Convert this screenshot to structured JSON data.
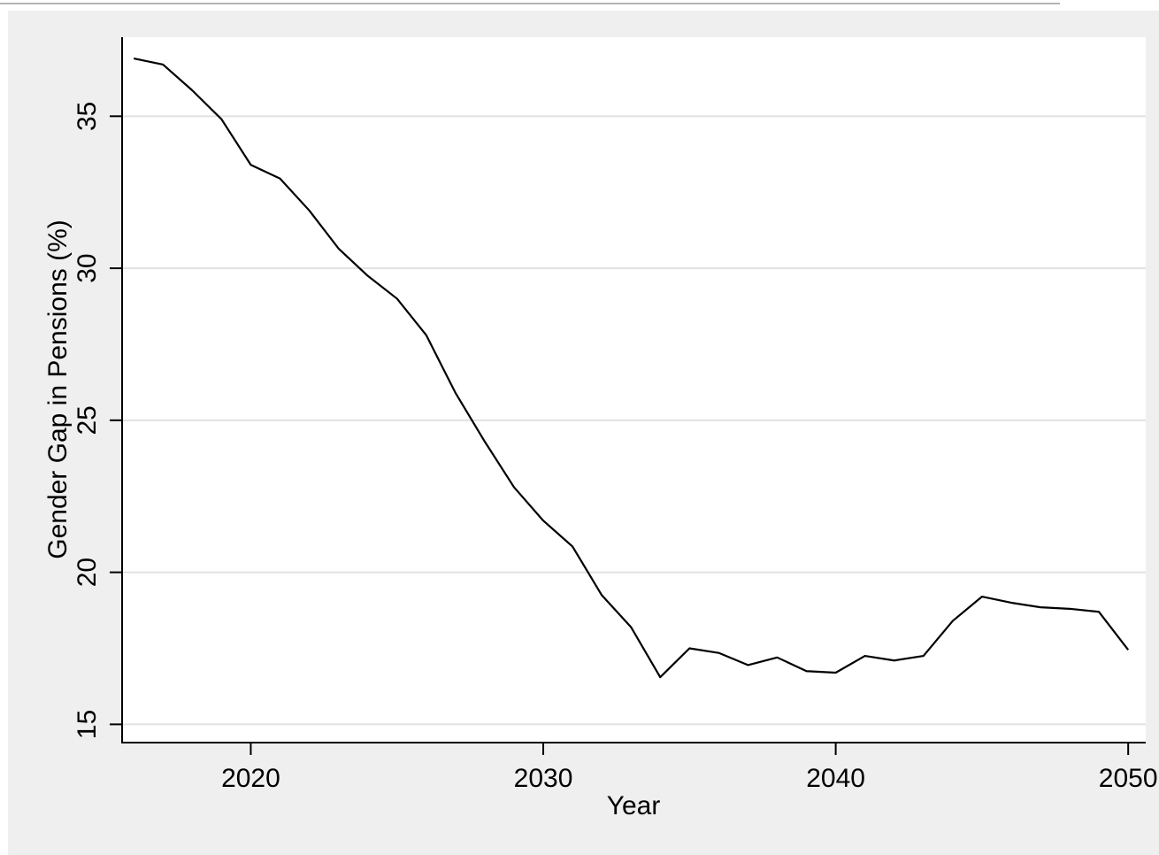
{
  "chart_data": {
    "type": "line",
    "title": "",
    "xlabel": "Year",
    "ylabel": "Gender Gap in Pensions (%)",
    "xlim": [
      2015.6,
      2050.6
    ],
    "ylim": [
      14.4,
      37.6
    ],
    "x_ticks": [
      2020,
      2030,
      2040,
      2050
    ],
    "y_ticks": [
      15,
      20,
      25,
      30,
      35
    ],
    "grid": true,
    "legend": "none",
    "colors": {
      "background": "#efefef",
      "plot_background": "#ffffff",
      "grid": "#e1e1e1",
      "line": "#000000"
    },
    "series": [
      {
        "x": [
          2016,
          2017,
          2018,
          2019,
          2020,
          2021,
          2022,
          2023,
          2024,
          2025,
          2026,
          2027,
          2028,
          2029,
          2030,
          2031,
          2032,
          2033,
          2034,
          2035,
          2036,
          2037,
          2038,
          2039,
          2040,
          2041,
          2042,
          2043,
          2044,
          2045,
          2046,
          2047,
          2048,
          2049,
          2050
        ],
        "values": [
          36.9,
          36.7,
          35.85,
          34.9,
          33.4,
          32.95,
          31.9,
          30.65,
          29.75,
          29.0,
          27.8,
          25.9,
          24.3,
          22.8,
          21.7,
          20.85,
          19.25,
          18.2,
          16.55,
          17.5,
          17.35,
          16.95,
          17.2,
          16.75,
          16.7,
          17.25,
          17.1,
          17.25,
          18.4,
          19.2,
          19.0,
          18.85,
          18.8,
          18.7,
          17.45
        ]
      }
    ]
  }
}
